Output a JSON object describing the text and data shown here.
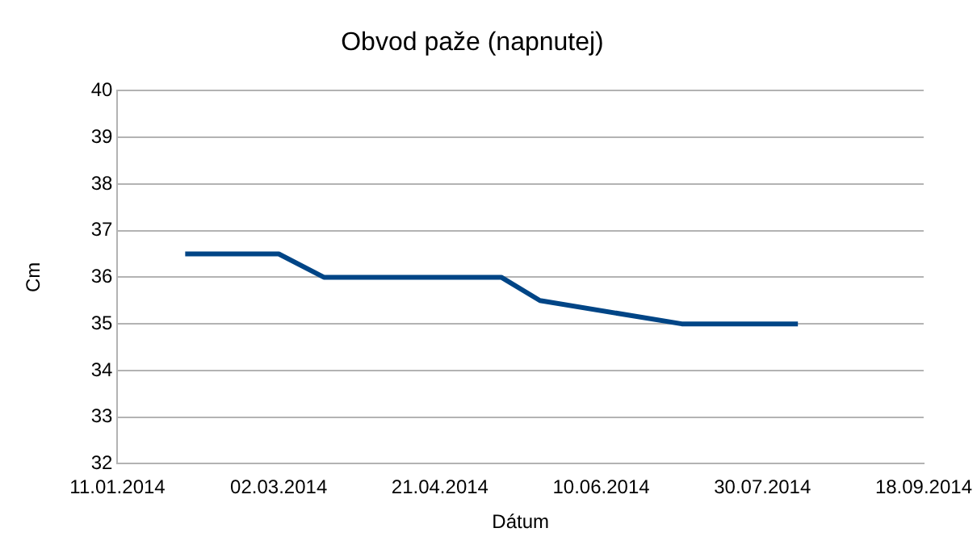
{
  "chart_data": {
    "type": "line",
    "title": "Obvod paže (napnutej)",
    "xlabel": "Dátum",
    "ylabel": "Cm",
    "x": [
      "2014-02-01",
      "2014-03-02",
      "2014-03-16",
      "2014-05-10",
      "2014-05-22",
      "2014-07-05",
      "2014-08-10"
    ],
    "series": [
      {
        "color": "#004586",
        "values": [
          36.5,
          36.5,
          36,
          36,
          35.5,
          35,
          35
        ]
      }
    ],
    "xlim": [
      "2014-01-11",
      "2014-09-18"
    ],
    "xticks": [
      {
        "value": "2014-01-11",
        "label": "11.01.2014"
      },
      {
        "value": "2014-03-02",
        "label": "02.03.2014"
      },
      {
        "value": "2014-04-21",
        "label": "21.04.2014"
      },
      {
        "value": "2014-06-10",
        "label": "10.06.2014"
      },
      {
        "value": "2014-07-30",
        "label": "30.07.2014"
      },
      {
        "value": "2014-09-18",
        "label": "18.09.2014"
      }
    ],
    "ylim": [
      32,
      40
    ],
    "yticks": [
      32,
      33,
      34,
      35,
      36,
      37,
      38,
      39,
      40
    ],
    "grid": "y",
    "legend": false,
    "marker": "none",
    "line_style": "solid"
  }
}
